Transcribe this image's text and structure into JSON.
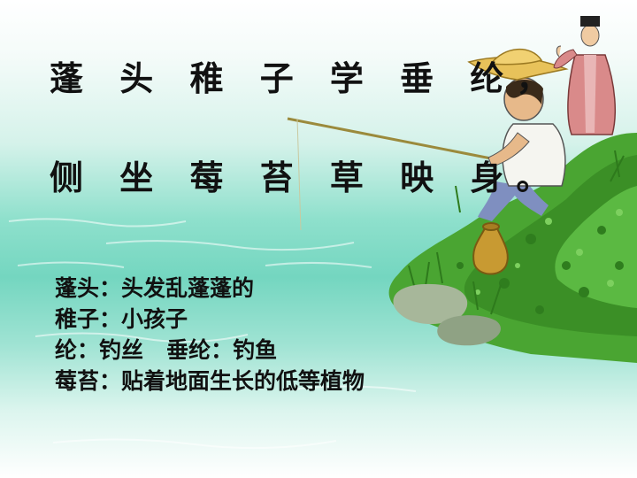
{
  "poem": {
    "line1": "蓬 头 稚 子 学 垂 纶，",
    "line2": "侧 坐 莓 苔 草 映 身。"
  },
  "notes": [
    "蓬头：头发乱蓬蓬的",
    "稚子：小孩子",
    "纶：钓丝   垂纶：钓鱼",
    "莓苔：贴着地面生长的低等植物"
  ],
  "colors": {
    "water": "#74d6c0",
    "grass": "#3f9a2a",
    "hat": "#e8c25a",
    "robe": "#d98a8a"
  }
}
